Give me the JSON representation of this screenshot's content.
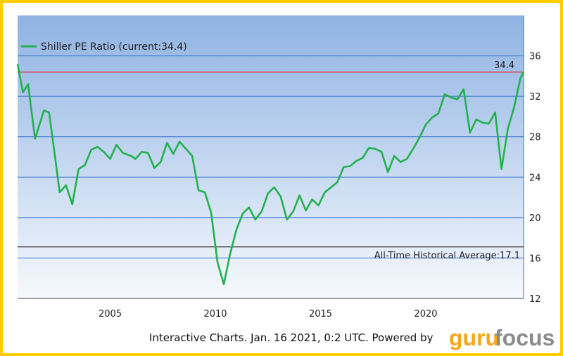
{
  "chart_data": {
    "type": "line",
    "series": [
      {
        "name": "Shiller PE Ratio (current:34.4)",
        "color": "#22b14c",
        "points": [
          [
            2001.0,
            35.2
          ],
          [
            2001.25,
            32.4
          ],
          [
            2001.5,
            33.2
          ],
          [
            2001.83,
            27.8
          ],
          [
            2002.25,
            30.6
          ],
          [
            2002.5,
            30.4
          ],
          [
            2002.75,
            26.5
          ],
          [
            2003.0,
            22.5
          ],
          [
            2003.3,
            23.2
          ],
          [
            2003.6,
            21.3
          ],
          [
            2003.9,
            24.8
          ],
          [
            2004.2,
            25.2
          ],
          [
            2004.5,
            26.7
          ],
          [
            2004.8,
            27.0
          ],
          [
            2005.1,
            26.5
          ],
          [
            2005.4,
            25.8
          ],
          [
            2005.7,
            27.2
          ],
          [
            2006.0,
            26.4
          ],
          [
            2006.4,
            26.1
          ],
          [
            2006.6,
            25.8
          ],
          [
            2006.9,
            26.5
          ],
          [
            2007.2,
            26.4
          ],
          [
            2007.5,
            24.9
          ],
          [
            2007.8,
            25.5
          ],
          [
            2008.1,
            27.4
          ],
          [
            2008.4,
            26.3
          ],
          [
            2008.7,
            27.5
          ],
          [
            2009.0,
            26.8
          ],
          [
            2009.3,
            26.1
          ],
          [
            2009.6,
            22.7
          ],
          [
            2009.9,
            22.5
          ],
          [
            2010.2,
            20.5
          ],
          [
            2010.5,
            15.6
          ],
          [
            2010.8,
            13.4
          ],
          [
            2011.1,
            16.4
          ],
          [
            2011.4,
            18.8
          ],
          [
            2011.7,
            20.4
          ],
          [
            2012.0,
            21.0
          ],
          [
            2012.3,
            19.8
          ],
          [
            2012.6,
            20.6
          ],
          [
            2012.9,
            22.4
          ],
          [
            2013.2,
            23.0
          ],
          [
            2013.5,
            22.1
          ],
          [
            2013.8,
            19.8
          ],
          [
            2014.1,
            20.6
          ],
          [
            2014.4,
            22.2
          ],
          [
            2014.7,
            20.7
          ],
          [
            2015.0,
            21.8
          ],
          [
            2015.3,
            21.2
          ],
          [
            2015.6,
            22.5
          ],
          [
            2015.9,
            23.0
          ],
          [
            2016.2,
            23.5
          ],
          [
            2016.5,
            25.0
          ],
          [
            2016.8,
            25.1
          ],
          [
            2017.1,
            25.6
          ],
          [
            2017.4,
            25.9
          ],
          [
            2017.7,
            26.9
          ],
          [
            2018.0,
            26.8
          ],
          [
            2018.3,
            26.5
          ],
          [
            2018.6,
            24.5
          ],
          [
            2018.9,
            26.1
          ],
          [
            2019.2,
            25.5
          ],
          [
            2019.5,
            25.8
          ],
          [
            2019.8,
            26.8
          ],
          [
            2020.1,
            27.9
          ],
          [
            2020.4,
            29.2
          ],
          [
            2020.7,
            29.9
          ],
          [
            2021.0,
            30.3
          ],
          [
            2021.3,
            32.2
          ],
          [
            2021.6,
            31.9
          ],
          [
            2021.9,
            31.7
          ],
          [
            2022.2,
            32.7
          ],
          [
            2022.5,
            28.4
          ],
          [
            2022.8,
            29.7
          ],
          [
            2023.1,
            29.4
          ],
          [
            2023.4,
            29.3
          ],
          [
            2023.7,
            30.4
          ],
          [
            2024.0,
            24.8
          ],
          [
            2024.3,
            28.8
          ],
          [
            2024.6,
            30.9
          ],
          [
            2024.9,
            33.8
          ],
          [
            2025.05,
            34.4
          ]
        ]
      }
    ],
    "x_ticks": [
      "2005",
      "2010",
      "2015",
      "2020"
    ],
    "y_ticks": [
      "12",
      "16",
      "20",
      "24",
      "28",
      "32",
      "36"
    ],
    "ylim": [
      12,
      40
    ],
    "current_value": 34.4,
    "current_label": "34.4",
    "average_value": 17.1,
    "average_label": "All-Time Historical Average:17.1",
    "grid": true,
    "legend_position": "top-left"
  },
  "colors": {
    "frame": "#ffcc00",
    "plot_top": "#8fb3e3",
    "plot_bottom": "#f6f9fd",
    "grid": "#2f6fcf",
    "current_line": "#e0201c",
    "average_line": "#222222",
    "line": "#22b14c"
  },
  "footer": {
    "text": "Interactive Charts. Jan. 16 2021, 0:2 UTC. Powered by",
    "logo_part1": "guru",
    "logo_part2": "focus",
    "logo_color1": "#f7a51e",
    "logo_color2": "#8a8a8a"
  }
}
